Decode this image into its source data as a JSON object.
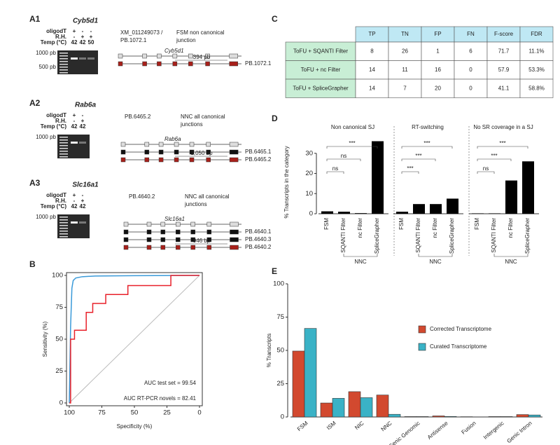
{
  "panels": {
    "a1": "A1",
    "a2": "A2",
    "a3": "A3",
    "b": "B",
    "c": "C",
    "d": "D",
    "e": "E"
  },
  "gels": [
    {
      "gene": "Cyb5d1",
      "rows": [
        {
          "label": "oligodT",
          "values": [
            "+",
            "-",
            "-"
          ]
        },
        {
          "label": "R.H.",
          "values": [
            "-",
            "+",
            "+"
          ]
        },
        {
          "label": "Temp (°C)",
          "values": [
            "42",
            "42",
            "50"
          ]
        }
      ],
      "ladder": [
        "1000 pb",
        "500 pb"
      ],
      "notes": [
        [
          "XM_011249073 /",
          "PB.1072.1"
        ],
        [
          "FSM non canonical",
          "junction"
        ]
      ],
      "gene_label": "Cyb5d1",
      "amplicon": "394 pb",
      "transcripts": [
        "PB.1072.1"
      ]
    },
    {
      "gene": "Rab6a",
      "rows": [
        {
          "label": "oligodT",
          "values": [
            "+",
            "-"
          ]
        },
        {
          "label": "R.H.",
          "values": [
            "-",
            "+"
          ]
        },
        {
          "label": "Temp (°C)",
          "values": [
            "42",
            "42"
          ]
        }
      ],
      "ladder": [
        "1000 pb"
      ],
      "notes": [
        [
          "PB.6465.2"
        ],
        [
          "NNC all canonical",
          "junctions"
        ]
      ],
      "gene_label": "Rab6a",
      "amplicon": "1,050 bp",
      "transcripts": [
        "PB.6465.1",
        "PB.6465.2"
      ]
    },
    {
      "gene": "Slc16a1",
      "rows": [
        {
          "label": "oligodT",
          "values": [
            "+",
            "-"
          ]
        },
        {
          "label": "R.H.",
          "values": [
            "-",
            "+"
          ]
        },
        {
          "label": "Temp (°C)",
          "values": [
            "42",
            "42"
          ]
        }
      ],
      "ladder": [
        "1000 pb"
      ],
      "notes": [
        [
          "PB.4640.2"
        ],
        [
          "NNC all canonical",
          "junctions"
        ]
      ],
      "gene_label": "Slc16a1",
      "amplicon": "946 bp",
      "transcripts": [
        "PB.4640.1",
        "PB.4640.3",
        "PB.4640.2"
      ]
    }
  ],
  "table": {
    "header": [
      "TP",
      "TN",
      "FP",
      "FN",
      "F-score",
      "FDR"
    ],
    "rows": [
      [
        "ToFU + SQANTI Filter",
        "8",
        "26",
        "1",
        "6",
        "71.7",
        "11.1%"
      ],
      [
        "ToFU + nc Filter",
        "14",
        "11",
        "16",
        "0",
        "57.9",
        "53.3%"
      ],
      [
        "ToFU + SpliceGrapher",
        "14",
        "7",
        "20",
        "0",
        "41.1",
        "58.8%"
      ]
    ]
  },
  "chart_data": [
    {
      "type": "line",
      "xlabel": "Specificity (%)",
      "ylabel": "Sensitivity (%)",
      "xlim": [
        100,
        0
      ],
      "ylim": [
        0,
        100
      ],
      "xticks": [
        100,
        75,
        50,
        25,
        0
      ],
      "yticks": [
        0,
        25,
        50,
        75,
        100
      ],
      "series": [
        {
          "name": "AUC test set = 99.54",
          "color": "#3a9ad9",
          "x": [
            100,
            99,
            98,
            97,
            95,
            90,
            80,
            50,
            0
          ],
          "values": [
            0,
            60,
            90,
            96,
            98,
            99,
            99.5,
            99.8,
            100
          ]
        },
        {
          "name": "AUC RT-PCR novels = 82.41",
          "color": "#e8202a",
          "x": [
            100,
            99,
            99,
            96,
            96,
            87,
            87,
            82,
            82,
            72,
            72,
            55,
            55,
            22,
            22,
            0
          ],
          "values": [
            0,
            0,
            50,
            50,
            57,
            57,
            71,
            71,
            78,
            78,
            85,
            85,
            92,
            92,
            100,
            100
          ]
        }
      ]
    },
    {
      "type": "grouped-bar",
      "ylabel": "% Transcripts in the category",
      "ylim": [
        0,
        40
      ],
      "yticks": [
        0,
        10,
        20,
        30
      ],
      "categories": [
        "FSM",
        "SQANTI Filter",
        "nc Filter",
        "SpliceGrapher"
      ],
      "group_label": "NNC",
      "color": "#000000",
      "groups": [
        {
          "title": "Non canonical SJ",
          "values": [
            1.2,
            1.0,
            0.3,
            36
          ],
          "significance": [
            "ns",
            "ns",
            "***"
          ]
        },
        {
          "title": "RT-switching",
          "values": [
            1.0,
            4.8,
            4.8,
            7.5
          ],
          "significance": [
            "***",
            "***",
            "***"
          ]
        },
        {
          "title": "No SR coverage in a SJ",
          "values": [
            0.2,
            0.2,
            16.5,
            26
          ],
          "significance": [
            "ns",
            "***",
            "***"
          ]
        }
      ]
    },
    {
      "type": "bar",
      "ylabel": "% Transcripts",
      "ylim": [
        0,
        100
      ],
      "yticks": [
        0,
        25,
        50,
        75,
        100
      ],
      "legend": "right",
      "categories": [
        "FSM",
        "ISM",
        "NIC",
        "NNC",
        "Genic Genomic",
        "Antisense",
        "Fusion",
        "Intergenic",
        "Genic Intron"
      ],
      "series": [
        {
          "name": "Corrected Transcriptome",
          "color": "#d2492f",
          "values": [
            49.5,
            10.5,
            19,
            16.5,
            0.3,
            0.8,
            0.2,
            0.3,
            1.8
          ]
        },
        {
          "name": "Curated Transcriptome",
          "color": "#3ab2c6",
          "values": [
            66.5,
            14,
            14.5,
            2,
            0.3,
            0.4,
            0.1,
            0.3,
            1.5
          ]
        }
      ]
    }
  ]
}
